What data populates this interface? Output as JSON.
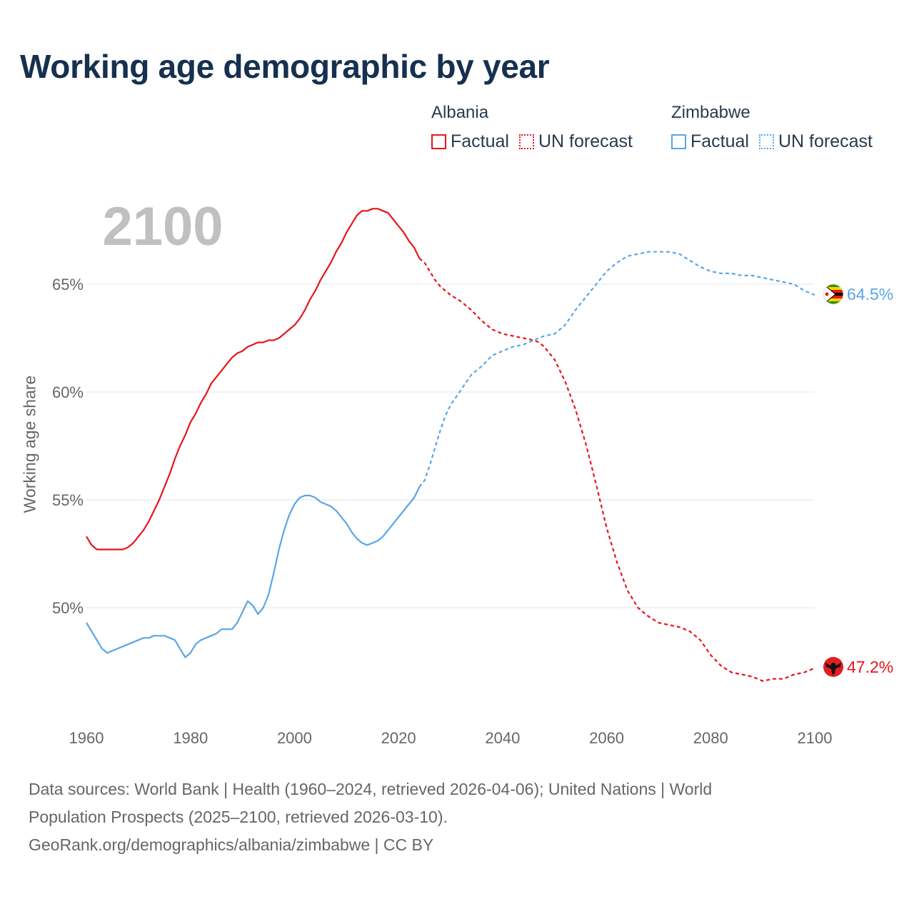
{
  "title": "Working age demographic by year",
  "legend": {
    "groups": [
      {
        "name": "Albania",
        "color": "#e8141c",
        "items": [
          {
            "label": "Factual",
            "style": "solid"
          },
          {
            "label": "UN forecast",
            "style": "dotted"
          }
        ]
      },
      {
        "name": "Zimbabwe",
        "color": "#5aa6e6",
        "items": [
          {
            "label": "Factual",
            "style": "solid"
          },
          {
            "label": "UN forecast",
            "style": "dotted"
          }
        ]
      }
    ]
  },
  "source": {
    "line1": "Data sources: World Bank | Health (1960–2024, retrieved 2026-04-06); United Nations | World",
    "line2": "Population Prospects (2025–2100, retrieved 2026-03-10).",
    "line3": "GeoRank.org/demographics/albania/zimbabwe | CC BY"
  },
  "chart_data": {
    "type": "line",
    "title": "Working age demographic by year",
    "year_label": "2100",
    "xlabel": "",
    "ylabel": "Working age share",
    "xlim": [
      1960,
      2100
    ],
    "ylim": [
      44.5,
      71
    ],
    "x_ticks": [
      1960,
      1980,
      2000,
      2020,
      2040,
      2060,
      2080,
      2100
    ],
    "y_ticks": [
      50,
      55,
      60,
      65
    ],
    "y_tick_labels": [
      "50%",
      "55%",
      "60%",
      "65%"
    ],
    "grid": true,
    "forecast_start": 2024,
    "series": [
      {
        "name": "Albania",
        "color": "#e8141c",
        "end_label": "47.2%",
        "flag_icon": "albania-flag-icon",
        "points": [
          [
            1960,
            53.3
          ],
          [
            1961,
            52.9
          ],
          [
            1962,
            52.7
          ],
          [
            1963,
            52.7
          ],
          [
            1965,
            52.7
          ],
          [
            1967,
            52.7
          ],
          [
            1968,
            52.8
          ],
          [
            1969,
            53.0
          ],
          [
            1970,
            53.3
          ],
          [
            1971,
            53.6
          ],
          [
            1972,
            54.0
          ],
          [
            1973,
            54.5
          ],
          [
            1974,
            55.0
          ],
          [
            1975,
            55.6
          ],
          [
            1976,
            56.2
          ],
          [
            1977,
            56.9
          ],
          [
            1978,
            57.5
          ],
          [
            1979,
            58.0
          ],
          [
            1980,
            58.6
          ],
          [
            1981,
            59.0
          ],
          [
            1982,
            59.5
          ],
          [
            1983,
            59.9
          ],
          [
            1984,
            60.4
          ],
          [
            1985,
            60.7
          ],
          [
            1986,
            61.0
          ],
          [
            1987,
            61.3
          ],
          [
            1988,
            61.6
          ],
          [
            1989,
            61.8
          ],
          [
            1990,
            61.9
          ],
          [
            1991,
            62.1
          ],
          [
            1992,
            62.2
          ],
          [
            1993,
            62.3
          ],
          [
            1994,
            62.3
          ],
          [
            1995,
            62.4
          ],
          [
            1996,
            62.4
          ],
          [
            1997,
            62.5
          ],
          [
            1998,
            62.7
          ],
          [
            1999,
            62.9
          ],
          [
            2000,
            63.1
          ],
          [
            2001,
            63.4
          ],
          [
            2002,
            63.8
          ],
          [
            2003,
            64.3
          ],
          [
            2004,
            64.7
          ],
          [
            2005,
            65.2
          ],
          [
            2006,
            65.6
          ],
          [
            2007,
            66.0
          ],
          [
            2008,
            66.5
          ],
          [
            2009,
            66.9
          ],
          [
            2010,
            67.4
          ],
          [
            2011,
            67.8
          ],
          [
            2012,
            68.2
          ],
          [
            2013,
            68.4
          ],
          [
            2014,
            68.4
          ],
          [
            2015,
            68.5
          ],
          [
            2016,
            68.5
          ],
          [
            2017,
            68.4
          ],
          [
            2018,
            68.3
          ],
          [
            2019,
            68.0
          ],
          [
            2020,
            67.7
          ],
          [
            2021,
            67.4
          ],
          [
            2022,
            67.0
          ],
          [
            2023,
            66.7
          ],
          [
            2024,
            66.2
          ],
          [
            2025,
            66.0
          ],
          [
            2026,
            65.6
          ],
          [
            2027,
            65.2
          ],
          [
            2028,
            64.9
          ],
          [
            2029,
            64.7
          ],
          [
            2030,
            64.5
          ],
          [
            2032,
            64.2
          ],
          [
            2034,
            63.8
          ],
          [
            2036,
            63.3
          ],
          [
            2038,
            62.9
          ],
          [
            2040,
            62.7
          ],
          [
            2042,
            62.6
          ],
          [
            2044,
            62.5
          ],
          [
            2046,
            62.4
          ],
          [
            2047,
            62.3
          ],
          [
            2048,
            62.1
          ],
          [
            2050,
            61.5
          ],
          [
            2052,
            60.5
          ],
          [
            2054,
            59.2
          ],
          [
            2056,
            57.6
          ],
          [
            2058,
            55.7
          ],
          [
            2060,
            53.7
          ],
          [
            2062,
            52.1
          ],
          [
            2064,
            50.8
          ],
          [
            2066,
            50.0
          ],
          [
            2068,
            49.6
          ],
          [
            2070,
            49.3
          ],
          [
            2072,
            49.2
          ],
          [
            2074,
            49.1
          ],
          [
            2076,
            48.9
          ],
          [
            2078,
            48.5
          ],
          [
            2080,
            47.8
          ],
          [
            2082,
            47.3
          ],
          [
            2084,
            47.0
          ],
          [
            2086,
            46.9
          ],
          [
            2088,
            46.8
          ],
          [
            2090,
            46.6
          ],
          [
            2092,
            46.7
          ],
          [
            2094,
            46.7
          ],
          [
            2096,
            46.9
          ],
          [
            2098,
            47.0
          ],
          [
            2100,
            47.2
          ]
        ]
      },
      {
        "name": "Zimbabwe",
        "color": "#5aa6e6",
        "end_label": "64.5%",
        "flag_icon": "zimbabwe-flag-icon",
        "points": [
          [
            1960,
            49.3
          ],
          [
            1961,
            48.9
          ],
          [
            1962,
            48.5
          ],
          [
            1963,
            48.1
          ],
          [
            1964,
            47.9
          ],
          [
            1966,
            48.1
          ],
          [
            1968,
            48.3
          ],
          [
            1970,
            48.5
          ],
          [
            1971,
            48.6
          ],
          [
            1972,
            48.6
          ],
          [
            1973,
            48.7
          ],
          [
            1974,
            48.7
          ],
          [
            1975,
            48.7
          ],
          [
            1976,
            48.6
          ],
          [
            1977,
            48.5
          ],
          [
            1978,
            48.1
          ],
          [
            1979,
            47.7
          ],
          [
            1980,
            47.9
          ],
          [
            1981,
            48.3
          ],
          [
            1982,
            48.5
          ],
          [
            1983,
            48.6
          ],
          [
            1984,
            48.7
          ],
          [
            1985,
            48.8
          ],
          [
            1986,
            49.0
          ],
          [
            1987,
            49.0
          ],
          [
            1988,
            49.0
          ],
          [
            1989,
            49.3
          ],
          [
            1990,
            49.8
          ],
          [
            1991,
            50.3
          ],
          [
            1992,
            50.1
          ],
          [
            1993,
            49.7
          ],
          [
            1994,
            50.0
          ],
          [
            1995,
            50.6
          ],
          [
            1996,
            51.6
          ],
          [
            1997,
            52.7
          ],
          [
            1998,
            53.6
          ],
          [
            1999,
            54.3
          ],
          [
            2000,
            54.8
          ],
          [
            2001,
            55.1
          ],
          [
            2002,
            55.2
          ],
          [
            2003,
            55.2
          ],
          [
            2004,
            55.1
          ],
          [
            2005,
            54.9
          ],
          [
            2006,
            54.8
          ],
          [
            2007,
            54.7
          ],
          [
            2008,
            54.5
          ],
          [
            2009,
            54.2
          ],
          [
            2010,
            53.9
          ],
          [
            2011,
            53.5
          ],
          [
            2012,
            53.2
          ],
          [
            2013,
            53.0
          ],
          [
            2014,
            52.9
          ],
          [
            2015,
            53.0
          ],
          [
            2016,
            53.1
          ],
          [
            2017,
            53.3
          ],
          [
            2018,
            53.6
          ],
          [
            2019,
            53.9
          ],
          [
            2020,
            54.2
          ],
          [
            2021,
            54.5
          ],
          [
            2022,
            54.8
          ],
          [
            2023,
            55.1
          ],
          [
            2024,
            55.6
          ],
          [
            2025,
            55.9
          ],
          [
            2026,
            56.6
          ],
          [
            2027,
            57.4
          ],
          [
            2028,
            58.2
          ],
          [
            2029,
            58.9
          ],
          [
            2030,
            59.4
          ],
          [
            2032,
            60.1
          ],
          [
            2034,
            60.8
          ],
          [
            2036,
            61.2
          ],
          [
            2038,
            61.7
          ],
          [
            2040,
            61.9
          ],
          [
            2042,
            62.1
          ],
          [
            2044,
            62.2
          ],
          [
            2046,
            62.4
          ],
          [
            2048,
            62.6
          ],
          [
            2050,
            62.7
          ],
          [
            2052,
            63.1
          ],
          [
            2054,
            63.8
          ],
          [
            2056,
            64.4
          ],
          [
            2058,
            65.0
          ],
          [
            2060,
            65.6
          ],
          [
            2062,
            66.0
          ],
          [
            2064,
            66.3
          ],
          [
            2066,
            66.4
          ],
          [
            2068,
            66.5
          ],
          [
            2070,
            66.5
          ],
          [
            2072,
            66.5
          ],
          [
            2074,
            66.4
          ],
          [
            2076,
            66.1
          ],
          [
            2078,
            65.8
          ],
          [
            2080,
            65.6
          ],
          [
            2082,
            65.5
          ],
          [
            2084,
            65.5
          ],
          [
            2086,
            65.4
          ],
          [
            2088,
            65.4
          ],
          [
            2090,
            65.3
          ],
          [
            2092,
            65.2
          ],
          [
            2094,
            65.1
          ],
          [
            2096,
            65.0
          ],
          [
            2098,
            64.7
          ],
          [
            2100,
            64.5
          ]
        ]
      }
    ]
  }
}
